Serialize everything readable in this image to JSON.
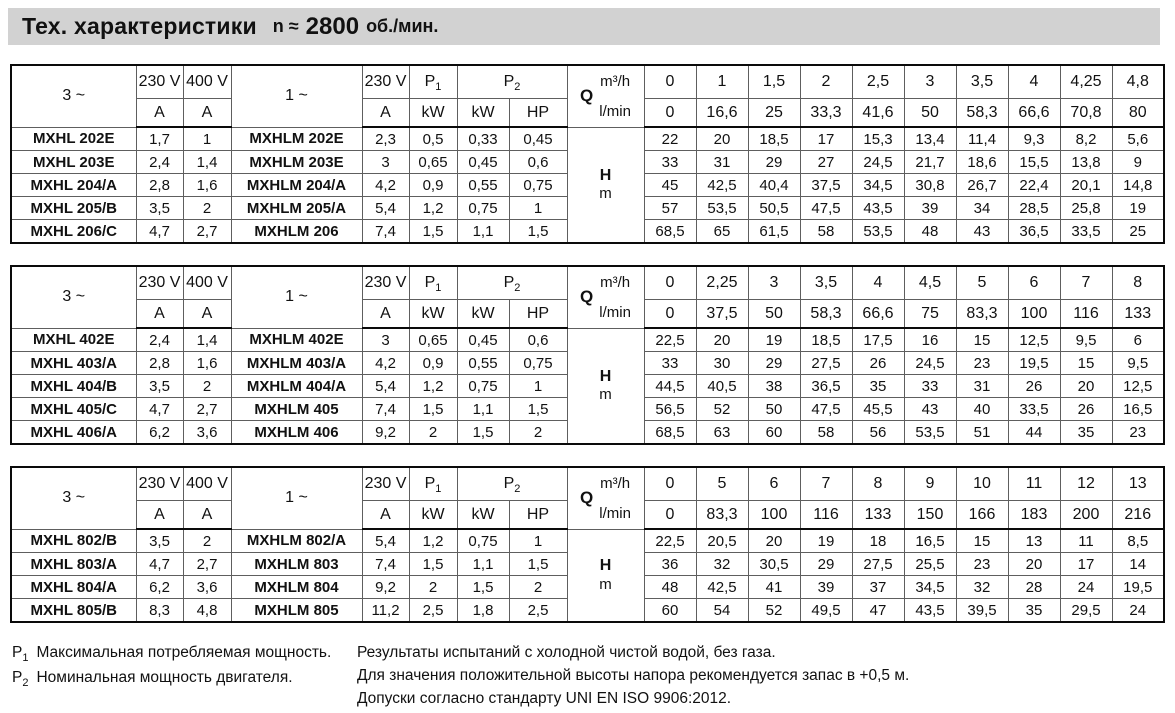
{
  "title": {
    "prefix": "Тех. характеристики",
    "n_label": "n ≈",
    "n_value": "2800",
    "unit": "об./мин."
  },
  "header_labels": {
    "phase3": "3 ~",
    "v230": "230 V",
    "v400": "400 V",
    "phase1": "1 ~",
    "v230b": "230 V",
    "p1_base": "P",
    "p1_sub": "1",
    "p2_base": "P",
    "p2_sub": "2",
    "amp": "A",
    "kw": "kW",
    "hp": "HP",
    "q": "Q",
    "q_unit_top": "m³/h",
    "q_unit_bottom": "l/min",
    "h": "H",
    "h_unit": "m"
  },
  "tables": [
    {
      "q_m3h": [
        "0",
        "1",
        "1,5",
        "2",
        "2,5",
        "3",
        "3,5",
        "4",
        "4,25",
        "4,8"
      ],
      "q_lmin": [
        "0",
        "16,6",
        "25",
        "33,3",
        "41,6",
        "50",
        "58,3",
        "66,6",
        "70,8",
        "80"
      ],
      "rows": [
        {
          "model3": "MXHL 202E",
          "a230": "1,7",
          "a400": "1",
          "model1": "MXHLM 202E",
          "a": "2,3",
          "p1_kw": "0,5",
          "p2_kw": "0,33",
          "p2_hp": "0,45",
          "h": [
            "22",
            "20",
            "18,5",
            "17",
            "15,3",
            "13,4",
            "11,4",
            "9,3",
            "8,2",
            "5,6"
          ]
        },
        {
          "model3": "MXHL 203E",
          "a230": "2,4",
          "a400": "1,4",
          "model1": "MXHLM 203E",
          "a": "3",
          "p1_kw": "0,65",
          "p2_kw": "0,45",
          "p2_hp": "0,6",
          "h": [
            "33",
            "31",
            "29",
            "27",
            "24,5",
            "21,7",
            "18,6",
            "15,5",
            "13,8",
            "9"
          ]
        },
        {
          "model3": "MXHL 204/A",
          "a230": "2,8",
          "a400": "1,6",
          "model1": "MXHLM 204/A",
          "a": "4,2",
          "p1_kw": "0,9",
          "p2_kw": "0,55",
          "p2_hp": "0,75",
          "h": [
            "45",
            "42,5",
            "40,4",
            "37,5",
            "34,5",
            "30,8",
            "26,7",
            "22,4",
            "20,1",
            "14,8"
          ]
        },
        {
          "model3": "MXHL 205/B",
          "a230": "3,5",
          "a400": "2",
          "model1": "MXHLM 205/A",
          "a": "5,4",
          "p1_kw": "1,2",
          "p2_kw": "0,75",
          "p2_hp": "1",
          "h": [
            "57",
            "53,5",
            "50,5",
            "47,5",
            "43,5",
            "39",
            "34",
            "28,5",
            "25,8",
            "19"
          ]
        },
        {
          "model3": "MXHL 206/C",
          "a230": "4,7",
          "a400": "2,7",
          "model1": "MXHLM 206",
          "a": "7,4",
          "p1_kw": "1,5",
          "p2_kw": "1,1",
          "p2_hp": "1,5",
          "h": [
            "68,5",
            "65",
            "61,5",
            "58",
            "53,5",
            "48",
            "43",
            "36,5",
            "33,5",
            "25"
          ]
        }
      ]
    },
    {
      "q_m3h": [
        "0",
        "2,25",
        "3",
        "3,5",
        "4",
        "4,5",
        "5",
        "6",
        "7",
        "8"
      ],
      "q_lmin": [
        "0",
        "37,5",
        "50",
        "58,3",
        "66,6",
        "75",
        "83,3",
        "100",
        "116",
        "133"
      ],
      "rows": [
        {
          "model3": "MXHL 402E",
          "a230": "2,4",
          "a400": "1,4",
          "model1": "MXHLM 402E",
          "a": "3",
          "p1_kw": "0,65",
          "p2_kw": "0,45",
          "p2_hp": "0,6",
          "h": [
            "22,5",
            "20",
            "19",
            "18,5",
            "17,5",
            "16",
            "15",
            "12,5",
            "9,5",
            "6"
          ]
        },
        {
          "model3": "MXHL 403/A",
          "a230": "2,8",
          "a400": "1,6",
          "model1": "MXHLM 403/A",
          "a": "4,2",
          "p1_kw": "0,9",
          "p2_kw": "0,55",
          "p2_hp": "0,75",
          "h": [
            "33",
            "30",
            "29",
            "27,5",
            "26",
            "24,5",
            "23",
            "19,5",
            "15",
            "9,5"
          ]
        },
        {
          "model3": "MXHL 404/B",
          "a230": "3,5",
          "a400": "2",
          "model1": "MXHLM 404/A",
          "a": "5,4",
          "p1_kw": "1,2",
          "p2_kw": "0,75",
          "p2_hp": "1",
          "h": [
            "44,5",
            "40,5",
            "38",
            "36,5",
            "35",
            "33",
            "31",
            "26",
            "20",
            "12,5"
          ]
        },
        {
          "model3": "MXHL 405/C",
          "a230": "4,7",
          "a400": "2,7",
          "model1": "MXHLM 405",
          "a": "7,4",
          "p1_kw": "1,5",
          "p2_kw": "1,1",
          "p2_hp": "1,5",
          "h": [
            "56,5",
            "52",
            "50",
            "47,5",
            "45,5",
            "43",
            "40",
            "33,5",
            "26",
            "16,5"
          ]
        },
        {
          "model3": "MXHL 406/A",
          "a230": "6,2",
          "a400": "3,6",
          "model1": "MXHLM 406",
          "a": "9,2",
          "p1_kw": "2",
          "p2_kw": "1,5",
          "p2_hp": "2",
          "h": [
            "68,5",
            "63",
            "60",
            "58",
            "56",
            "53,5",
            "51",
            "44",
            "35",
            "23"
          ]
        }
      ]
    },
    {
      "q_m3h": [
        "0",
        "5",
        "6",
        "7",
        "8",
        "9",
        "10",
        "11",
        "12",
        "13"
      ],
      "q_lmin": [
        "0",
        "83,3",
        "100",
        "116",
        "133",
        "150",
        "166",
        "183",
        "200",
        "216"
      ],
      "rows": [
        {
          "model3": "MXHL 802/B",
          "a230": "3,5",
          "a400": "2",
          "model1": "MXHLM 802/A",
          "a": "5,4",
          "p1_kw": "1,2",
          "p2_kw": "0,75",
          "p2_hp": "1",
          "h": [
            "22,5",
            "20,5",
            "20",
            "19",
            "18",
            "16,5",
            "15",
            "13",
            "11",
            "8,5"
          ]
        },
        {
          "model3": "MXHL 803/A",
          "a230": "4,7",
          "a400": "2,7",
          "model1": "MXHLM 803",
          "a": "7,4",
          "p1_kw": "1,5",
          "p2_kw": "1,1",
          "p2_hp": "1,5",
          "h": [
            "36",
            "32",
            "30,5",
            "29",
            "27,5",
            "25,5",
            "23",
            "20",
            "17",
            "14"
          ]
        },
        {
          "model3": "MXHL 804/A",
          "a230": "6,2",
          "a400": "3,6",
          "model1": "MXHLM 804",
          "a": "9,2",
          "p1_kw": "2",
          "p2_kw": "1,5",
          "p2_hp": "2",
          "h": [
            "48",
            "42,5",
            "41",
            "39",
            "37",
            "34,5",
            "32",
            "28",
            "24",
            "19,5"
          ]
        },
        {
          "model3": "MXHL 805/B",
          "a230": "8,3",
          "a400": "4,8",
          "model1": "MXHLM 805",
          "a": "11,2",
          "p1_kw": "2,5",
          "p2_kw": "1,8",
          "p2_hp": "2,5",
          "h": [
            "60",
            "54",
            "52",
            "49,5",
            "47",
            "43,5",
            "39,5",
            "35",
            "29,5",
            "24"
          ]
        }
      ]
    }
  ],
  "footnotes": {
    "p1_base": "P",
    "p1_sub": "1",
    "p1_text": "Максимальная потребляемая мощность.",
    "p2_base": "P",
    "p2_sub": "2",
    "p2_text": "Номинальная мощность двигателя.",
    "right": [
      "Результаты испытаний с холодной чистой водой, без газа.",
      "Для значения положительной высоты напора рекомендуется запас в +0,5 м.",
      "Допуски согласно стандарту UNI EN ISO 9906:2012."
    ]
  },
  "colors": {
    "title_bg": "#d2d2d2",
    "border_dark": "#0a0a0a",
    "border_light": "#5e5e5e",
    "text": "#111111",
    "page_bg": "#ffffff"
  }
}
